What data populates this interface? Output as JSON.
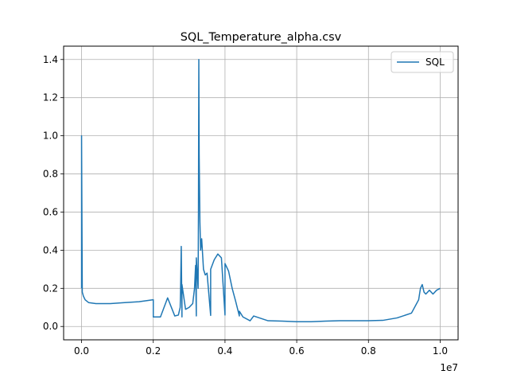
{
  "chart_data": {
    "type": "line",
    "title": "SQL_Temperature_alpha.csv",
    "xlabel": "",
    "ylabel": "",
    "x_offset_label": "1e7",
    "xlim": [
      -0.05,
      1.05
    ],
    "ylim": [
      -0.07,
      1.47
    ],
    "x_scale": 10000000,
    "x_ticks": [
      0.0,
      0.2,
      0.4,
      0.6,
      0.8,
      1.0
    ],
    "x_tick_labels": [
      "0.0",
      "0.2",
      "0.4",
      "0.6",
      "0.8",
      "1.0"
    ],
    "y_ticks": [
      0.0,
      0.2,
      0.4,
      0.6,
      0.8,
      1.0,
      1.2,
      1.4
    ],
    "y_tick_labels": [
      "0.0",
      "0.2",
      "0.4",
      "0.6",
      "0.8",
      "1.0",
      "1.2",
      "1.4"
    ],
    "grid": true,
    "legend": {
      "position": "top-right"
    },
    "colors": {
      "series": "#1f77b4",
      "grid": "#b0b0b0"
    },
    "series": [
      {
        "name": "SQL",
        "x": [
          0.0,
          0.0,
          0.002,
          0.005,
          0.01,
          0.02,
          0.04,
          0.08,
          0.12,
          0.16,
          0.2,
          0.24,
          0.28,
          0.32,
          0.36,
          0.4,
          0.44,
          0.48,
          0.52,
          0.56,
          0.6,
          0.64,
          0.68,
          0.72,
          0.76,
          0.8,
          0.84,
          0.88,
          0.92,
          0.94,
          0.945,
          0.95,
          0.955,
          0.96,
          0.97,
          0.98,
          0.99,
          1.0,
          0.2,
          0.22,
          0.26,
          0.27,
          0.275,
          0.276,
          0.278,
          0.28,
          0.29,
          0.3,
          0.31,
          0.315,
          0.318,
          0.32,
          0.325,
          0.326,
          0.327,
          0.328,
          0.33,
          0.332,
          0.335,
          0.34,
          0.345,
          0.35,
          0.36,
          0.37,
          0.38,
          0.39,
          0.4,
          0.41,
          0.42,
          0.43,
          0.44,
          0.45,
          0.47
        ],
        "y": [
          0.2,
          1.0,
          0.18,
          0.16,
          0.14,
          0.125,
          0.12,
          0.12,
          0.125,
          0.13,
          0.14,
          0.15,
          0.05,
          0.055,
          0.058,
          0.06,
          0.055,
          0.055,
          0.03,
          0.028,
          0.025,
          0.025,
          0.028,
          0.03,
          0.03,
          0.03,
          0.032,
          0.045,
          0.07,
          0.14,
          0.2,
          0.22,
          0.18,
          0.17,
          0.19,
          0.17,
          0.19,
          0.2,
          0.05,
          0.05,
          0.055,
          0.06,
          0.1,
          0.18,
          0.42,
          0.22,
          0.09,
          0.1,
          0.12,
          0.2,
          0.32,
          0.36,
          0.2,
          0.6,
          1.4,
          0.9,
          0.55,
          0.4,
          0.46,
          0.3,
          0.27,
          0.28,
          0.3,
          0.35,
          0.38,
          0.36,
          0.33,
          0.29,
          0.2,
          0.13,
          0.08,
          0.05,
          0.03
        ]
      }
    ]
  }
}
